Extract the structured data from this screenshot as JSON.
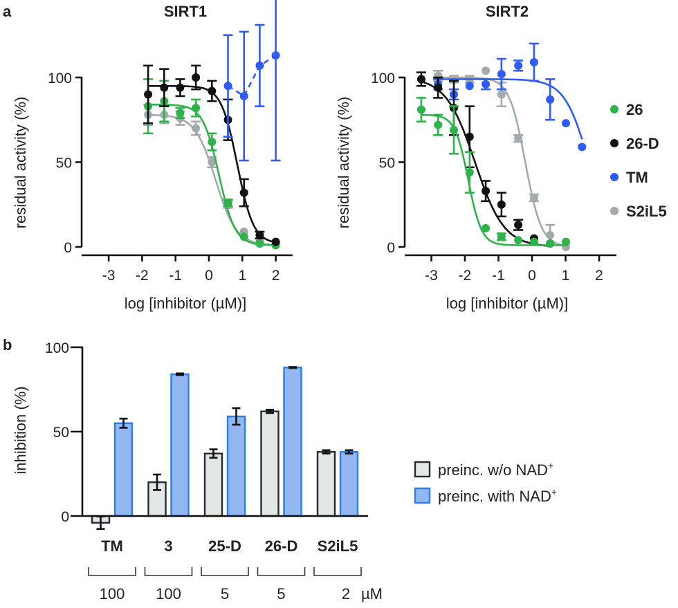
{
  "panel_labels": {
    "a": "a",
    "b": "b"
  },
  "colors": {
    "26": "#2db34a",
    "26-D": "#111111",
    "TM": "#2f5cf5",
    "S2iL5": "#a3aaad",
    "bar_wo_fill": "#e2e9e5",
    "bar_wo_edge": "#222a33",
    "bar_with_fill": "#93b7f1",
    "bar_with_edge": "#2b7cf0"
  },
  "chart_data": [
    {
      "type": "scatter",
      "title": "SIRT1",
      "xlabel": "log [inhibitor (µM)]",
      "ylabel": "residual activity (%)",
      "xlim": [
        -3.5,
        2.5
      ],
      "ylim": [
        0,
        100
      ],
      "xticks": [
        "-3",
        "-2",
        "-1",
        "0",
        "1",
        "2"
      ],
      "yticks": [
        "0",
        "50",
        "100"
      ],
      "series": [
        {
          "name": "S2iL5",
          "color_key": "S2iL5",
          "x": [
            -1.82,
            -1.34,
            -0.86,
            -0.39,
            0.09,
            0.57,
            1.05,
            1.52,
            2.0
          ],
          "y": [
            78,
            78,
            76,
            70,
            50,
            25,
            9,
            3,
            2
          ],
          "err": [
            6,
            5,
            4,
            4,
            3,
            2,
            1,
            1,
            1
          ],
          "fit": {
            "top": 78,
            "bottom": 1,
            "log_ic50": 0.2,
            "hill": 1.4
          },
          "line": "solid"
        },
        {
          "name": "26",
          "color_key": "26",
          "x": [
            -1.82,
            -1.34,
            -0.86,
            -0.39,
            0.09,
            0.57,
            1.05,
            1.52,
            2.0
          ],
          "y": [
            83,
            86,
            79,
            82,
            62,
            26,
            6,
            2,
            1
          ],
          "err": [
            16,
            12,
            3,
            5,
            5,
            2,
            1,
            1,
            1
          ],
          "fit": {
            "top": 84,
            "bottom": 1,
            "log_ic50": 0.3,
            "hill": 1.8
          },
          "line": "solid"
        },
        {
          "name": "26-D",
          "color_key": "26-D",
          "x": [
            -1.82,
            -1.34,
            -0.86,
            -0.39,
            0.09,
            0.57,
            1.05,
            1.52,
            2.0
          ],
          "y": [
            90,
            94,
            94,
            100,
            92,
            75,
            32,
            7,
            3
          ],
          "err": [
            17,
            11,
            5,
            7,
            6,
            12,
            8,
            2,
            1
          ],
          "fit": {
            "top": 95,
            "bottom": 2,
            "log_ic50": 0.85,
            "hill": 1.8
          },
          "line": "solid"
        },
        {
          "name": "TM",
          "color_key": "TM",
          "x": [
            0.57,
            1.05,
            1.52,
            2.0
          ],
          "y": [
            95,
            89,
            107,
            113
          ],
          "err": [
            30,
            38,
            24,
            62
          ],
          "fit": null,
          "line": "dashed"
        }
      ]
    },
    {
      "type": "scatter",
      "title": "SIRT2",
      "xlabel": "log [inhibitor (µM)]",
      "ylabel": "residual activity (%)",
      "xlim": [
        -3.5,
        2.5
      ],
      "ylim": [
        0,
        100
      ],
      "xticks": [
        "-3",
        "-2",
        "-1",
        "0",
        "1",
        "2"
      ],
      "yticks": [
        "0",
        "50",
        "100"
      ],
      "legend": {
        "placement": "right",
        "entries": [
          "26",
          "26-D",
          "TM",
          "S2iL5"
        ]
      },
      "series": [
        {
          "name": "S2iL5",
          "color_key": "S2iL5",
          "x": [
            -2.8,
            -2.33,
            -1.86,
            -1.38,
            -0.91,
            -0.41,
            0.06,
            0.54,
            1.01
          ],
          "y": [
            101,
            99,
            99,
            104,
            90,
            64,
            29,
            7,
            0
          ],
          "err": [
            3,
            2,
            2,
            1,
            7,
            2,
            2,
            6,
            1
          ],
          "fit": {
            "top": 100,
            "bottom": 0,
            "log_ic50": -0.2,
            "hill": 1.8
          },
          "line": "solid"
        },
        {
          "name": "TM",
          "color_key": "TM",
          "x": [
            -2.8,
            -2.33,
            -1.86,
            -1.38,
            -0.91,
            -0.41,
            0.06,
            0.54,
            1.01,
            1.49
          ],
          "y": [
            96,
            90,
            95,
            96,
            102,
            107,
            109,
            87,
            73,
            59
          ],
          "err": [
            3,
            3,
            1,
            3,
            9,
            3,
            11,
            12,
            1,
            1
          ],
          "fit": {
            "top": 99,
            "bottom": 0,
            "log_ic50": 1.7,
            "hill": 1.2
          },
          "line": "solid"
        },
        {
          "name": "26-D",
          "color_key": "26-D",
          "x": [
            -3.3,
            -2.8,
            -2.33,
            -1.86,
            -1.38,
            -0.91,
            -0.41,
            0.06,
            0.54
          ],
          "y": [
            99,
            94,
            82,
            65,
            33,
            25,
            13,
            5,
            2
          ],
          "err": [
            4,
            6,
            16,
            18,
            6,
            7,
            3,
            1,
            1
          ],
          "fit": {
            "top": 100,
            "bottom": 0,
            "log_ic50": -1.7,
            "hill": 1.0
          },
          "line": "solid"
        },
        {
          "name": "26",
          "color_key": "26",
          "x": [
            -3.3,
            -2.8,
            -2.33,
            -1.86,
            -1.38,
            -0.91,
            -0.41,
            0.06,
            0.54,
            1.01
          ],
          "y": [
            81,
            72,
            69,
            44,
            11,
            6,
            4,
            3,
            2,
            3
          ],
          "err": [
            7,
            6,
            14,
            12,
            1,
            2,
            1,
            1,
            1,
            1
          ],
          "fit": {
            "top": 78,
            "bottom": 1,
            "log_ic50": -1.9,
            "hill": 2.2
          },
          "line": "solid"
        }
      ]
    },
    {
      "type": "bar",
      "ylabel": "inhibition (%)",
      "ylim": [
        -10,
        100
      ],
      "yticks": [
        "0",
        "50",
        "100"
      ],
      "categories": [
        "TM",
        "3",
        "25-D",
        "26-D",
        "S2iL5"
      ],
      "concentrations": [
        "100",
        "100",
        "5",
        "5",
        "2"
      ],
      "concentration_unit": "µM",
      "series": [
        {
          "name": "preinc. w/o NAD",
          "sup": "+",
          "values": [
            -4,
            20,
            37,
            62,
            38
          ],
          "err": [
            3.7,
            4.6,
            2.5,
            1,
            1
          ]
        },
        {
          "name": "preinc. with NAD",
          "sup": "+",
          "values": [
            55,
            84,
            59,
            88,
            38
          ],
          "err": [
            2.7,
            0.5,
            4.9,
            0.3,
            1
          ]
        }
      ],
      "legend": {
        "placement": "right"
      }
    }
  ]
}
